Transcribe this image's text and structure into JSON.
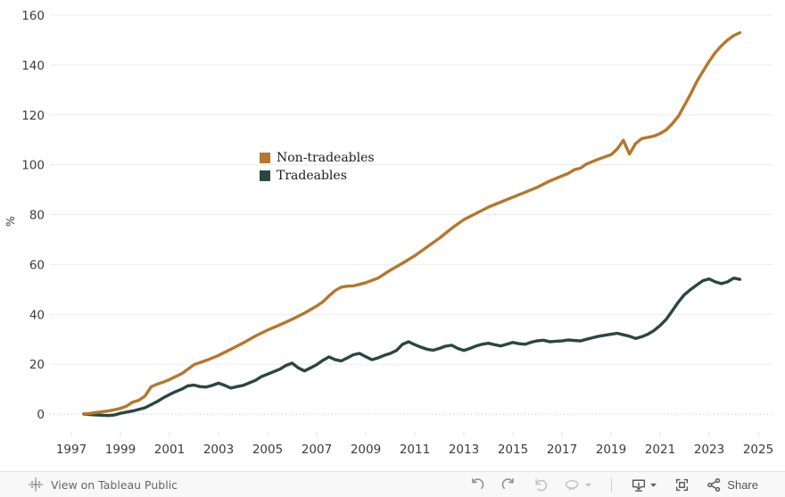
{
  "chart_data": {
    "type": "line",
    "title": "",
    "xlabel": "",
    "ylabel": "%",
    "xlim": [
      1996.8,
      2025.6
    ],
    "ylim": [
      0,
      160
    ],
    "x_ticks": [
      1997,
      1999,
      2001,
      2003,
      2005,
      2007,
      2009,
      2011,
      2013,
      2015,
      2017,
      2019,
      2021,
      2023,
      2025
    ],
    "y_ticks": [
      0,
      20,
      40,
      60,
      80,
      100,
      120,
      140,
      160
    ],
    "grid": "horizontal, zero line dotted",
    "legend_position": "inside upper-left of plot",
    "series": [
      {
        "name": "Non-tradeables",
        "color": "#b5772c",
        "points": [
          [
            1997.5,
            0
          ],
          [
            1997.75,
            0.2
          ],
          [
            1998,
            0.6
          ],
          [
            1998.25,
            0.9
          ],
          [
            1998.5,
            1.2
          ],
          [
            1998.75,
            1.7
          ],
          [
            1999,
            2.3
          ],
          [
            1999.25,
            3.2
          ],
          [
            1999.5,
            4.8
          ],
          [
            1999.75,
            5.5
          ],
          [
            2000,
            7.2
          ],
          [
            2000.25,
            10.9
          ],
          [
            2000.5,
            12
          ],
          [
            2000.75,
            12.8
          ],
          [
            2001,
            13.8
          ],
          [
            2001.5,
            16.2
          ],
          [
            2002,
            19.8
          ],
          [
            2002.5,
            21.5
          ],
          [
            2003,
            23.5
          ],
          [
            2003.5,
            26
          ],
          [
            2004,
            28.5
          ],
          [
            2004.5,
            31.3
          ],
          [
            2005,
            33.7
          ],
          [
            2005.5,
            35.8
          ],
          [
            2006,
            38
          ],
          [
            2006.5,
            40.5
          ],
          [
            2007,
            43.3
          ],
          [
            2007.25,
            45
          ],
          [
            2007.5,
            47.4
          ],
          [
            2007.75,
            49.5
          ],
          [
            2008,
            50.9
          ],
          [
            2008.25,
            51.3
          ],
          [
            2008.5,
            51.4
          ],
          [
            2008.75,
            52
          ],
          [
            2009,
            52.7
          ],
          [
            2009.5,
            54.5
          ],
          [
            2010,
            57.7
          ],
          [
            2010.5,
            60.5
          ],
          [
            2011,
            63.5
          ],
          [
            2011.5,
            67
          ],
          [
            2012,
            70.5
          ],
          [
            2012.5,
            74.5
          ],
          [
            2013,
            78
          ],
          [
            2013.5,
            80.5
          ],
          [
            2014,
            83
          ],
          [
            2014.5,
            85
          ],
          [
            2015,
            87
          ],
          [
            2015.5,
            89
          ],
          [
            2016,
            91
          ],
          [
            2016.5,
            93.5
          ],
          [
            2017,
            95.5
          ],
          [
            2017.25,
            96.5
          ],
          [
            2017.5,
            98
          ],
          [
            2017.75,
            98.6
          ],
          [
            2018,
            100.3
          ],
          [
            2018.5,
            102.3
          ],
          [
            2019,
            104
          ],
          [
            2019.25,
            106.3
          ],
          [
            2019.5,
            109.8
          ],
          [
            2019.75,
            104.3
          ],
          [
            2020,
            108.5
          ],
          [
            2020.25,
            110.5
          ],
          [
            2020.5,
            111
          ],
          [
            2020.75,
            111.5
          ],
          [
            2021,
            112.5
          ],
          [
            2021.25,
            114
          ],
          [
            2021.5,
            116.5
          ],
          [
            2021.75,
            119.5
          ],
          [
            2022,
            124
          ],
          [
            2022.25,
            128.5
          ],
          [
            2022.5,
            133.5
          ],
          [
            2022.75,
            137.5
          ],
          [
            2023,
            141.5
          ],
          [
            2023.25,
            145
          ],
          [
            2023.5,
            147.8
          ],
          [
            2023.75,
            150
          ],
          [
            2024,
            151.8
          ],
          [
            2024.25,
            153
          ]
        ]
      },
      {
        "name": "Tradeables",
        "color": "#2b4642",
        "points": [
          [
            1997.5,
            0
          ],
          [
            1997.75,
            -0.2
          ],
          [
            1998,
            -0.4
          ],
          [
            1998.5,
            -0.6
          ],
          [
            1998.75,
            -0.4
          ],
          [
            1999,
            0.3
          ],
          [
            1999.5,
            1.2
          ],
          [
            2000,
            2.5
          ],
          [
            2000.5,
            5
          ],
          [
            2000.75,
            6.5
          ],
          [
            2001,
            7.8
          ],
          [
            2001.25,
            9
          ],
          [
            2001.5,
            10
          ],
          [
            2001.75,
            11.3
          ],
          [
            2002,
            11.6
          ],
          [
            2002.25,
            11
          ],
          [
            2002.5,
            10.8
          ],
          [
            2002.75,
            11.5
          ],
          [
            2003,
            12.4
          ],
          [
            2003.25,
            11.5
          ],
          [
            2003.5,
            10.4
          ],
          [
            2003.75,
            11
          ],
          [
            2004,
            11.5
          ],
          [
            2004.5,
            13.5
          ],
          [
            2004.75,
            15
          ],
          [
            2005,
            16
          ],
          [
            2005.5,
            18
          ],
          [
            2005.75,
            19.5
          ],
          [
            2006,
            20.4
          ],
          [
            2006.25,
            18.5
          ],
          [
            2006.5,
            17.3
          ],
          [
            2006.75,
            18.5
          ],
          [
            2007,
            19.8
          ],
          [
            2007.25,
            21.5
          ],
          [
            2007.5,
            22.9
          ],
          [
            2007.75,
            21.8
          ],
          [
            2008,
            21.3
          ],
          [
            2008.25,
            22.5
          ],
          [
            2008.5,
            23.8
          ],
          [
            2008.75,
            24.3
          ],
          [
            2009,
            23
          ],
          [
            2009.25,
            21.8
          ],
          [
            2009.5,
            22.5
          ],
          [
            2009.75,
            23.5
          ],
          [
            2010,
            24.3
          ],
          [
            2010.25,
            25.5
          ],
          [
            2010.5,
            28
          ],
          [
            2010.75,
            29
          ],
          [
            2011,
            27.8
          ],
          [
            2011.25,
            26.8
          ],
          [
            2011.5,
            26
          ],
          [
            2011.75,
            25.6
          ],
          [
            2012,
            26.3
          ],
          [
            2012.25,
            27.2
          ],
          [
            2012.5,
            27.6
          ],
          [
            2012.75,
            26.3
          ],
          [
            2013,
            25.5
          ],
          [
            2013.25,
            26.3
          ],
          [
            2013.5,
            27.3
          ],
          [
            2013.75,
            28
          ],
          [
            2014,
            28.4
          ],
          [
            2014.25,
            27.8
          ],
          [
            2014.5,
            27.3
          ],
          [
            2014.75,
            28
          ],
          [
            2015,
            28.7
          ],
          [
            2015.25,
            28.2
          ],
          [
            2015.5,
            28
          ],
          [
            2015.75,
            28.8
          ],
          [
            2016,
            29.4
          ],
          [
            2016.25,
            29.6
          ],
          [
            2016.5,
            29
          ],
          [
            2016.75,
            29.2
          ],
          [
            2017,
            29.3
          ],
          [
            2017.25,
            29.7
          ],
          [
            2017.5,
            29.5
          ],
          [
            2017.75,
            29.3
          ],
          [
            2018,
            30
          ],
          [
            2018.25,
            30.6
          ],
          [
            2018.5,
            31.2
          ],
          [
            2018.75,
            31.6
          ],
          [
            2019,
            32
          ],
          [
            2019.25,
            32.4
          ],
          [
            2019.5,
            31.8
          ],
          [
            2019.75,
            31.2
          ],
          [
            2020,
            30.3
          ],
          [
            2020.25,
            31
          ],
          [
            2020.5,
            32
          ],
          [
            2020.75,
            33.5
          ],
          [
            2021,
            35.5
          ],
          [
            2021.25,
            38
          ],
          [
            2021.5,
            41.5
          ],
          [
            2021.75,
            45
          ],
          [
            2022,
            48
          ],
          [
            2022.25,
            50
          ],
          [
            2022.5,
            51.8
          ],
          [
            2022.75,
            53.5
          ],
          [
            2023,
            54.2
          ],
          [
            2023.25,
            53
          ],
          [
            2023.5,
            52.3
          ],
          [
            2023.75,
            53
          ],
          [
            2024,
            54.5
          ],
          [
            2024.25,
            54
          ]
        ]
      }
    ]
  },
  "legend": {
    "items": [
      {
        "label": "Non-tradeables"
      },
      {
        "label": "Tradeables"
      }
    ]
  },
  "toolbar": {
    "view_on_label": "View on Tableau Public",
    "share_label": "Share",
    "icons": [
      "tableau-logo",
      "undo",
      "redo",
      "revert",
      "refresh",
      "dropdown-caret",
      "download",
      "dropdown-caret",
      "fullscreen",
      "share"
    ]
  },
  "colors": {
    "non_tradeables_line": "#b5772c",
    "tradeables_line": "#2b4642",
    "gridline": "#ececec",
    "zero_line": "#c4c4c4",
    "toolbar_bg": "#f8f8f8",
    "toolbar_text": "#666666"
  }
}
